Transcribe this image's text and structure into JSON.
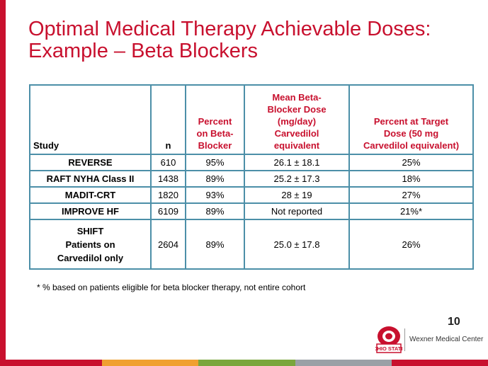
{
  "title": {
    "line1": "Optimal Medical Therapy Achievable Doses:",
    "line2": "Example – Beta Blockers"
  },
  "table": {
    "headers": {
      "study": "Study",
      "n": "n",
      "percent_on_beta_blocker": [
        "Percent",
        "on Beta-",
        "Blocker"
      ],
      "mean_dose": [
        "Mean Beta-",
        "Blocker Dose",
        "(mg/day)",
        "Carvedilol",
        "equivalent"
      ],
      "percent_at_target": [
        "Percent at Target",
        "Dose (50 mg",
        "Carvedilol equivalent)"
      ]
    },
    "rows": [
      {
        "study": [
          "REVERSE"
        ],
        "n": "610",
        "percent": "95%",
        "dose": "26.1 ± 18.1",
        "target": "25%"
      },
      {
        "study": [
          "RAFT NYHA  Class II"
        ],
        "n": "1438",
        "percent": "89%",
        "dose": "25.2 ± 17.3",
        "target": "18%"
      },
      {
        "study": [
          "MADIT-CRT"
        ],
        "n": "1820",
        "percent": "93%",
        "dose": "28 ± 19",
        "target": "27%"
      },
      {
        "study": [
          "IMPROVE  HF"
        ],
        "n": "6109",
        "percent": "89%",
        "dose": "Not reported",
        "target": "21%*"
      },
      {
        "study": [
          "SHIFT",
          "Patients on",
          "Carvedilol only"
        ],
        "n": "2604",
        "percent": "89%",
        "dose": "25.0 ± 17.8",
        "target": "26%"
      }
    ]
  },
  "footnote": "* % based on patients eligible for beta blocker therapy, not entire cohort",
  "logo": {
    "text": "Wexner Medical Center",
    "emblem_text": "OHIO STATE"
  },
  "page_number": "10",
  "colors": {
    "accent": "#c8102e",
    "table_border": "#4c8fa8",
    "bottom_bar": [
      "#c8102e",
      "#f0a030",
      "#7aa63c",
      "#9aa0a6",
      "#c8102e"
    ]
  }
}
